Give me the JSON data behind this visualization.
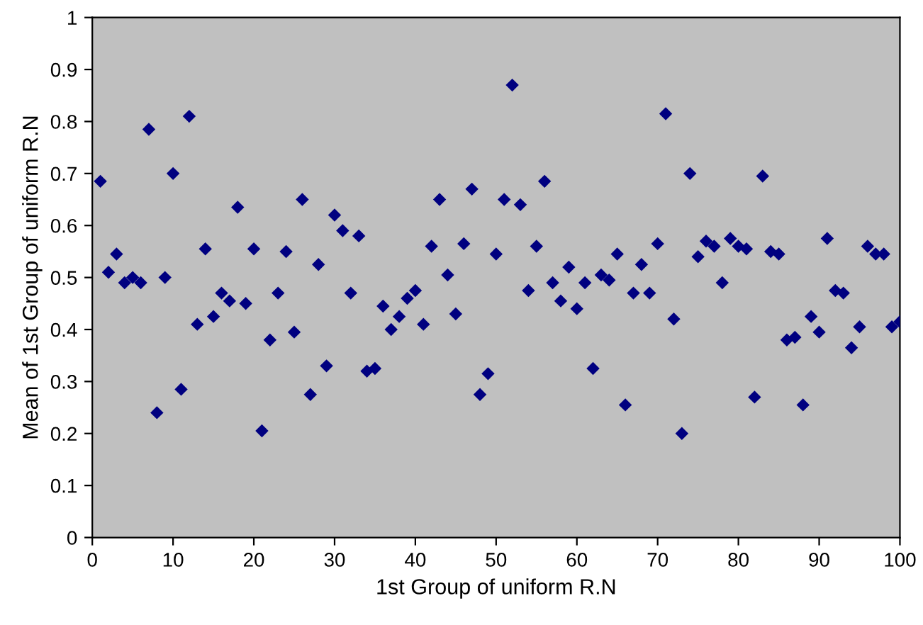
{
  "chart_data": {
    "type": "scatter",
    "xlabel": "1st Group of uniform R.N",
    "ylabel": "Mean of 1st Group of uniform R.N",
    "x": [
      1,
      2,
      3,
      4,
      5,
      6,
      7,
      8,
      9,
      10,
      11,
      12,
      13,
      14,
      15,
      16,
      17,
      18,
      19,
      20,
      21,
      22,
      23,
      24,
      25,
      26,
      27,
      28,
      29,
      30,
      31,
      32,
      33,
      34,
      35,
      36,
      37,
      38,
      39,
      40,
      41,
      42,
      43,
      44,
      45,
      46,
      47,
      48,
      49,
      50,
      51,
      52,
      53,
      54,
      55,
      56,
      57,
      58,
      59,
      60,
      61,
      62,
      63,
      64,
      65,
      66,
      67,
      68,
      69,
      70,
      71,
      72,
      73,
      74,
      75,
      76,
      77,
      78,
      79,
      80,
      81,
      82,
      83,
      84,
      85,
      86,
      87,
      88,
      89,
      90,
      91,
      92,
      93,
      94,
      95,
      96,
      97,
      98,
      99,
      100
    ],
    "series": [
      {
        "color": "#000080",
        "values": [
          0.685,
          0.51,
          0.545,
          0.49,
          0.5,
          0.49,
          0.785,
          0.24,
          0.5,
          0.7,
          0.285,
          0.81,
          0.41,
          0.555,
          0.425,
          0.47,
          0.455,
          0.635,
          0.45,
          0.555,
          0.205,
          0.38,
          0.47,
          0.55,
          0.395,
          0.65,
          0.275,
          0.525,
          0.33,
          0.62,
          0.59,
          0.47,
          0.58,
          0.32,
          0.325,
          0.445,
          0.4,
          0.425,
          0.46,
          0.475,
          0.41,
          0.56,
          0.65,
          0.505,
          0.43,
          0.565,
          0.67,
          0.275,
          0.315,
          0.545,
          0.65,
          0.87,
          0.64,
          0.475,
          0.56,
          0.685,
          0.49,
          0.455,
          0.52,
          0.44,
          0.49,
          0.325,
          0.505,
          0.495,
          0.545,
          0.255,
          0.47,
          0.525,
          0.47,
          0.565,
          0.815,
          0.42,
          0.2,
          0.7,
          0.54,
          0.57,
          0.56,
          0.49,
          0.575,
          0.56,
          0.555,
          0.27,
          0.695,
          0.55,
          0.545,
          0.38,
          0.385,
          0.255,
          0.425,
          0.395,
          0.575,
          0.475,
          0.47,
          0.365,
          0.405,
          0.56,
          0.545,
          0.545,
          0.405,
          0.415
        ]
      }
    ],
    "xlim": [
      0,
      100
    ],
    "xticks": [
      0,
      10,
      20,
      30,
      40,
      50,
      60,
      70,
      80,
      90,
      100
    ],
    "ylim": [
      0,
      1
    ],
    "yticks": [
      0,
      0.1,
      0.2,
      0.3,
      0.4,
      0.5,
      0.6,
      0.7,
      0.8,
      0.9,
      1
    ],
    "marker": "diamond",
    "grid": false
  }
}
